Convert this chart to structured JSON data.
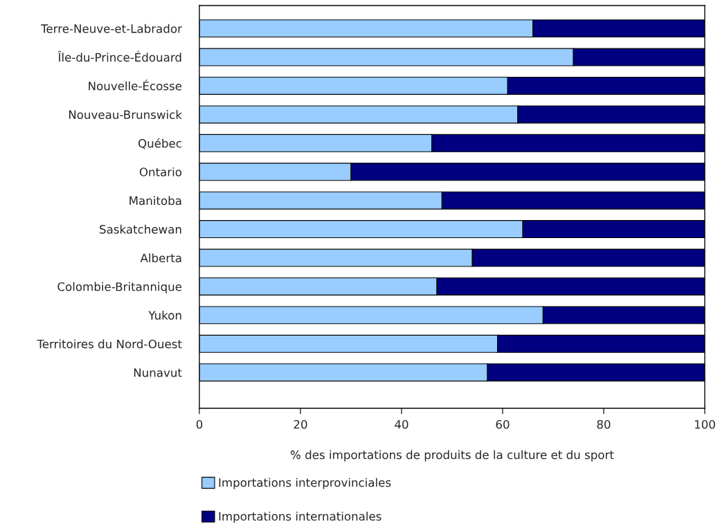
{
  "chart_data": {
    "type": "bar",
    "orientation": "horizontal",
    "stacked": true,
    "categories": [
      "Terre-Neuve-et-Labrador",
      "Île-du-Prince-Édouard",
      "Nouvelle-Écosse",
      "Nouveau-Brunswick",
      "Québec",
      "Ontario",
      "Manitoba",
      "Saskatchewan",
      "Alberta",
      "Colombie-Britannique",
      "Yukon",
      "Territoires du Nord-Ouest",
      "Nunavut"
    ],
    "series": [
      {
        "name": "Importations interprovinciales",
        "color": "#99ccff",
        "values": [
          66,
          74,
          61,
          63,
          46,
          30,
          48,
          64,
          54,
          47,
          68,
          59,
          57
        ]
      },
      {
        "name": "Importations internationales",
        "color": "#000080",
        "values": [
          34,
          26,
          39,
          37,
          54,
          70,
          52,
          36,
          46,
          53,
          32,
          41,
          43
        ]
      }
    ],
    "xlabel": "% des importations de produits de la culture et du sport",
    "xlim": [
      0,
      100
    ],
    "xticks": [
      0,
      20,
      40,
      60,
      80,
      100
    ],
    "grid": false,
    "legend": "bottom"
  }
}
